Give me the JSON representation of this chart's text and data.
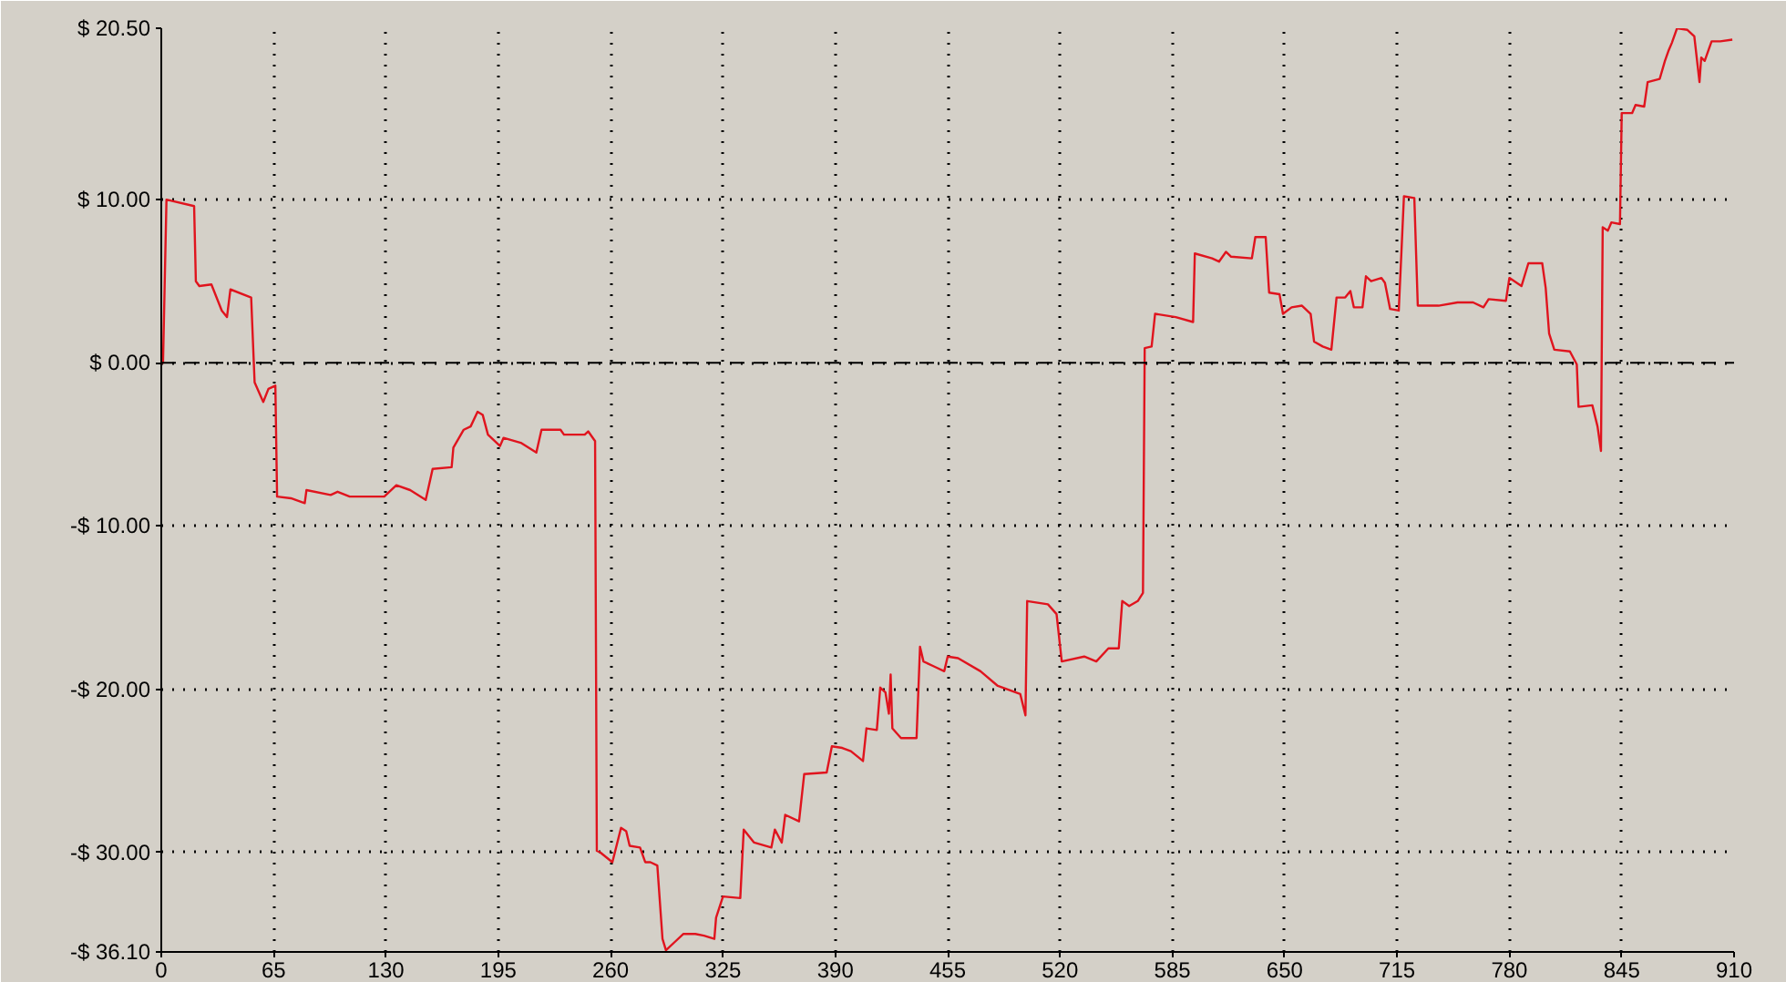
{
  "chart_data": {
    "type": "line",
    "x": [
      0,
      1,
      3,
      19,
      20,
      22,
      29,
      35,
      38,
      40,
      52,
      54,
      59,
      62,
      66,
      67,
      75,
      83,
      84,
      98,
      102,
      109,
      129,
      136,
      144,
      153,
      157,
      168,
      169,
      175,
      179,
      183,
      186,
      189,
      196,
      198,
      208,
      217,
      220,
      231,
      233,
      245,
      247,
      251,
      252,
      254,
      261,
      266,
      269,
      271,
      277,
      280,
      283,
      287,
      290,
      292,
      297,
      302,
      309,
      314,
      320,
      321,
      325,
      335,
      337,
      343,
      353,
      355,
      359,
      361,
      369,
      372,
      385,
      388,
      394,
      399,
      406,
      408,
      414,
      416,
      419,
      421,
      422,
      423,
      428,
      437,
      439,
      441,
      447,
      453,
      455,
      461,
      474,
      484,
      497,
      500,
      501,
      513,
      518,
      521,
      534,
      541,
      548,
      554,
      556,
      560,
      565,
      568,
      569,
      573,
      575,
      587,
      597,
      598,
      608,
      612,
      616,
      619,
      631,
      633,
      639,
      641,
      647,
      649,
      654,
      660,
      665,
      667,
      672,
      677,
      680,
      685,
      688,
      690,
      695,
      697,
      700,
      706,
      708,
      711,
      716,
      719,
      725,
      727,
      739,
      750,
      759,
      765,
      768,
      778,
      780,
      787,
      791,
      799,
      801,
      803,
      806,
      815,
      819,
      820,
      828,
      831,
      833,
      834,
      837,
      839,
      844,
      845,
      851,
      853,
      858,
      860,
      867,
      870,
      872,
      874,
      877,
      883,
      887,
      890,
      891,
      893,
      897,
      902,
      909
    ],
    "series": [
      {
        "color": "#e0141e",
        "values": [
          0,
          0,
          10.0,
          9.6,
          5.0,
          4.7,
          4.8,
          3.2,
          2.8,
          4.5,
          4.0,
          -1.2,
          -2.4,
          -1.6,
          -1.4,
          -8.2,
          -8.3,
          -8.6,
          -7.8,
          -8.1,
          -7.9,
          -8.2,
          -8.2,
          -7.5,
          -7.8,
          -8.4,
          -6.5,
          -6.4,
          -5.2,
          -4.1,
          -3.9,
          -3.0,
          -3.2,
          -4.4,
          -5.1,
          -4.6,
          -4.9,
          -5.5,
          -4.1,
          -4.1,
          -4.4,
          -4.4,
          -4.2,
          -4.8,
          -29.9,
          -30.0,
          -30.6,
          -28.5,
          -28.7,
          -29.6,
          -29.7,
          -30.6,
          -30.6,
          -30.8,
          -35.3,
          -36.0,
          -35.5,
          -35.0,
          -35.0,
          -35.1,
          -35.3,
          -34.0,
          -32.7,
          -32.8,
          -28.6,
          -29.4,
          -29.7,
          -28.6,
          -29.4,
          -27.7,
          -28.1,
          -25.2,
          -25.1,
          -23.5,
          -23.6,
          -23.8,
          -24.4,
          -22.4,
          -22.5,
          -19.9,
          -20.2,
          -21.5,
          -19.1,
          -22.4,
          -23.0,
          -23.0,
          -17.4,
          -18.3,
          -18.6,
          -18.9,
          -18.0,
          -18.1,
          -18.9,
          -19.8,
          -20.3,
          -21.6,
          -14.6,
          -14.8,
          -15.4,
          -18.3,
          -18.0,
          -18.3,
          -17.5,
          -17.5,
          -14.6,
          -14.9,
          -14.6,
          -14.1,
          0.9,
          1.0,
          3.0,
          2.8,
          2.5,
          6.7,
          6.4,
          6.2,
          6.8,
          6.5,
          6.4,
          7.7,
          7.7,
          4.3,
          4.2,
          3.0,
          3.4,
          3.5,
          3.0,
          1.3,
          1.0,
          0.8,
          4.0,
          4.0,
          4.4,
          3.4,
          3.4,
          5.3,
          5.0,
          5.2,
          4.9,
          3.3,
          3.2,
          10.2,
          10.1,
          3.5,
          3.5,
          3.7,
          3.7,
          3.4,
          3.9,
          3.8,
          5.2,
          4.7,
          6.1,
          6.1,
          4.6,
          1.8,
          0.8,
          0.7,
          -0.1,
          -2.7,
          -2.6,
          -3.9,
          -5.4,
          8.3,
          8.1,
          8.6,
          8.5,
          15.3,
          15.3,
          15.8,
          15.7,
          17.2,
          17.4,
          18.5,
          19.1,
          19.6,
          20.5,
          20.4,
          20.0,
          17.2,
          18.7,
          18.5,
          19.7,
          19.7,
          19.8
        ]
      }
    ],
    "xlim": [
      0,
      910
    ],
    "ylim": [
      -36.1,
      20.5
    ],
    "xticks": [
      0,
      65,
      130,
      195,
      260,
      325,
      390,
      455,
      520,
      585,
      650,
      715,
      780,
      845,
      910
    ],
    "yticks": [
      {
        "value": -36.1,
        "label": "-$ 36.10"
      },
      {
        "value": -30,
        "label": "-$ 30.00"
      },
      {
        "value": -20,
        "label": "-$ 20.00"
      },
      {
        "value": -10,
        "label": "-$ 10.00"
      },
      {
        "value": 0,
        "label": "$ 0.00"
      },
      {
        "value": 10,
        "label": "$ 10.00"
      },
      {
        "value": 20.5,
        "label": "$ 20.50"
      }
    ],
    "grid": true,
    "line_style": "solid",
    "ref_lines": [
      {
        "axis": "y",
        "value": 0,
        "label": null,
        "color": "#000000",
        "line_style": "dashed"
      }
    ]
  }
}
